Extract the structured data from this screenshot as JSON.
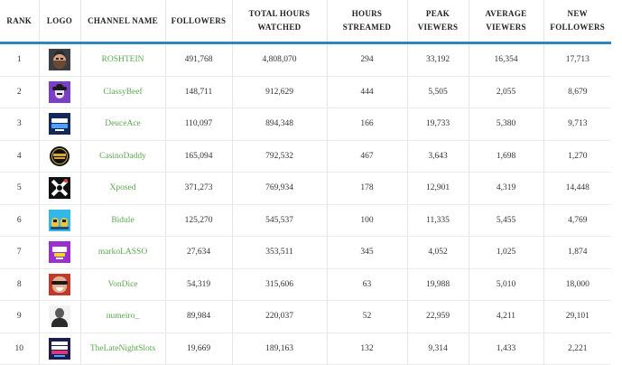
{
  "headers": {
    "rank": "RANK",
    "logo": "LOGO",
    "channel": "CHANNEL NAME",
    "followers": "FOLLOWERS",
    "hours_watched": "TOTAL HOURS WATCHED",
    "hours_streamed": "HOURS STREAMED",
    "peak": "PEAK VIEWERS",
    "average": "AVERAGE VIEWERS",
    "new_followers": "NEW FOLLOWERS"
  },
  "rows": [
    {
      "rank": "1",
      "channel": "ROSHTEIN",
      "logo_icon": "bearded-man-avatar-icon",
      "followers": "491,768",
      "hours_watched": "4,808,070",
      "hours_streamed": "294",
      "peak": "33,192",
      "average": "16,354",
      "new_followers": "17,713"
    },
    {
      "rank": "2",
      "channel": "ClassyBeef",
      "logo_icon": "purple-cowboy-logo-icon",
      "followers": "148,711",
      "hours_watched": "912,629",
      "hours_streamed": "444",
      "peak": "5,505",
      "average": "2,055",
      "new_followers": "8,679"
    },
    {
      "rank": "3",
      "channel": "DeuceAce",
      "logo_icon": "deuce-ace-logo-icon",
      "followers": "110,097",
      "hours_watched": "894,348",
      "hours_streamed": "166",
      "peak": "19,733",
      "average": "5,380",
      "new_followers": "9,713"
    },
    {
      "rank": "4",
      "channel": "CasinoDaddy",
      "logo_icon": "casino-daddy-logo-icon",
      "followers": "165,094",
      "hours_watched": "792,532",
      "hours_streamed": "467",
      "peak": "3,643",
      "average": "1,698",
      "new_followers": "1,270"
    },
    {
      "rank": "5",
      "channel": "Xposed",
      "logo_icon": "xposed-logo-icon",
      "followers": "371,273",
      "hours_watched": "769,934",
      "hours_streamed": "178",
      "peak": "12,901",
      "average": "4,319",
      "new_followers": "14,448"
    },
    {
      "rank": "6",
      "channel": "Bidule",
      "logo_icon": "bidule-logo-icon",
      "followers": "125,270",
      "hours_watched": "545,537",
      "hours_streamed": "100",
      "peak": "11,335",
      "average": "5,455",
      "new_followers": "4,769"
    },
    {
      "rank": "7",
      "channel": "markoLASSO",
      "logo_icon": "markolasso-logo-icon",
      "followers": "27,634",
      "hours_watched": "353,511",
      "hours_streamed": "345",
      "peak": "4,052",
      "average": "1,025",
      "new_followers": "1,874"
    },
    {
      "rank": "8",
      "channel": "VonDice",
      "logo_icon": "vondice-avatar-icon",
      "followers": "54,319",
      "hours_watched": "315,606",
      "hours_streamed": "63",
      "peak": "19,988",
      "average": "5,010",
      "new_followers": "18,000"
    },
    {
      "rank": "9",
      "channel": "numeiro_",
      "logo_icon": "numeiro-avatar-icon",
      "followers": "89,984",
      "hours_watched": "220,037",
      "hours_streamed": "52",
      "peak": "22,959",
      "average": "4,211",
      "new_followers": "29,101"
    },
    {
      "rank": "10",
      "channel": "TheLateNightSlots",
      "logo_icon": "latenightslots-logo-icon",
      "followers": "19,669",
      "hours_watched": "189,163",
      "hours_streamed": "132",
      "peak": "9,314",
      "average": "1,433",
      "new_followers": "2,221"
    }
  ],
  "colors": {
    "header_rule": "#2e86c1",
    "channel_link": "#5aa64e"
  }
}
